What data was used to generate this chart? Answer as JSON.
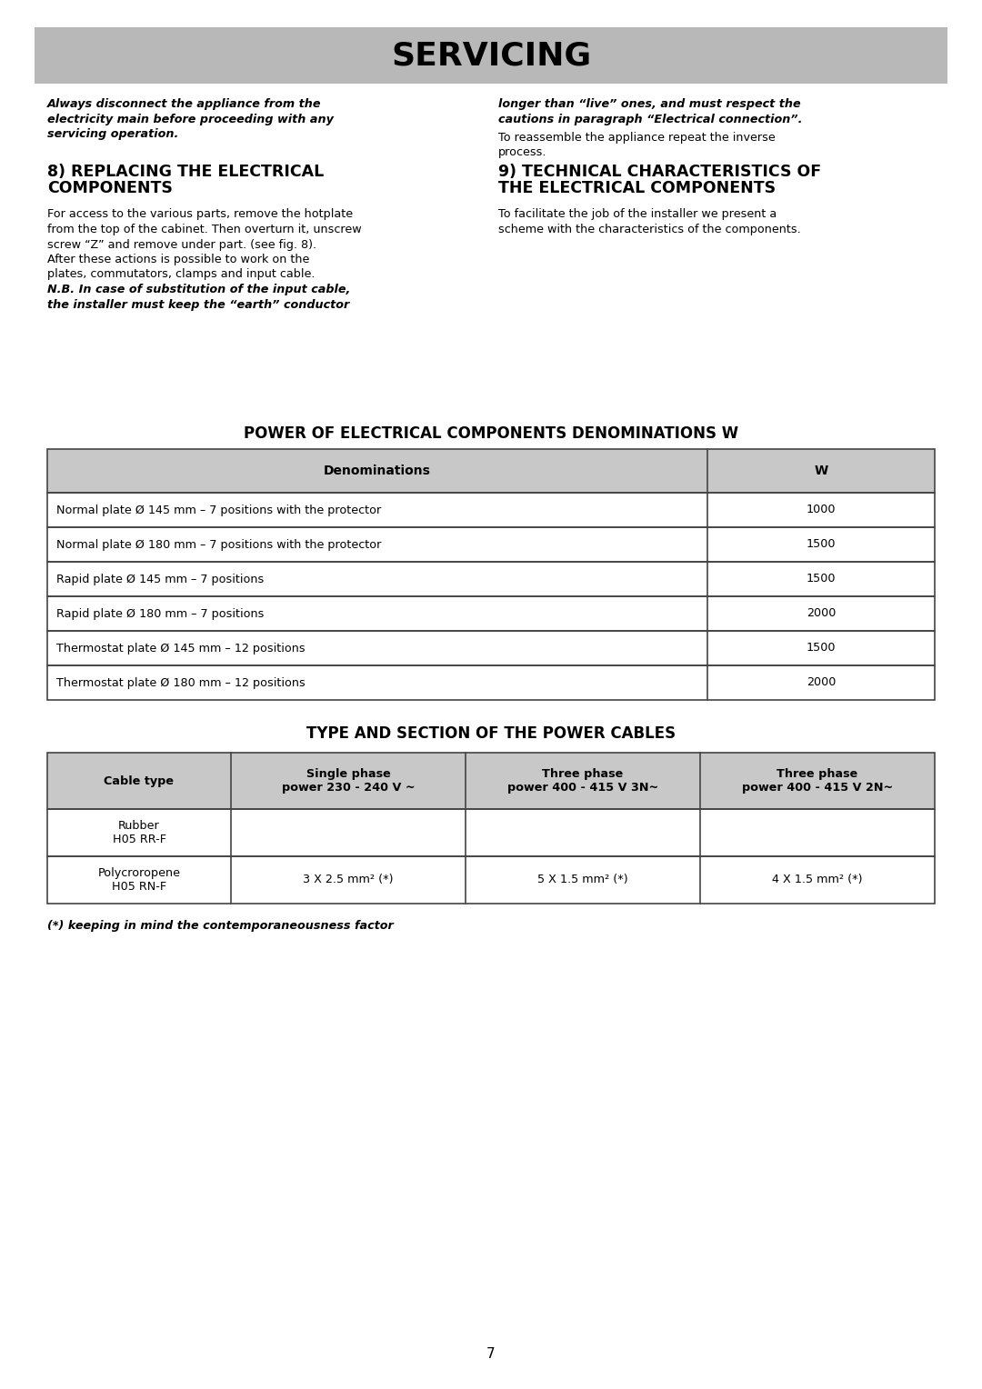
{
  "page_bg": "#ffffff",
  "header_bg": "#b8b8b8",
  "header_text": "SERVICING",
  "header_text_color": "#000000",
  "table_header_bg": "#c8c8c8",
  "table_border_color": "#444444",
  "body_text_color": "#000000",
  "table1_title": "POWER OF ELECTRICAL COMPONENTS DENOMINATIONS W",
  "table1_headers": [
    "Denominations",
    "W"
  ],
  "table1_rows": [
    [
      "Normal plate Ø 145 mm – 7 positions with the protector",
      "1000"
    ],
    [
      "Normal plate Ø 180 mm – 7 positions with the protector",
      "1500"
    ],
    [
      "Rapid plate Ø 145 mm – 7 positions",
      "1500"
    ],
    [
      "Rapid plate Ø 180 mm – 7 positions",
      "2000"
    ],
    [
      "Thermostat plate Ø 145 mm – 12 positions",
      "1500"
    ],
    [
      "Thermostat plate Ø 180 mm – 12 positions",
      "2000"
    ]
  ],
  "table2_title": "TYPE AND SECTION OF THE POWER CABLES",
  "table2_headers": [
    "Cable type",
    "Single phase\npower 230 - 240 V ~",
    "Three phase\npower 400 - 415 V 3N~",
    "Three phase\npower 400 - 415 V 2N~"
  ],
  "table2_rows": [
    [
      "Rubber\nH05 RR-F",
      "",
      "",
      ""
    ],
    [
      "Polycroropene\nH05 RN-F",
      "3 X 2.5 mm² (*)",
      "5 X 1.5 mm² (*)",
      "4 X 1.5 mm² (*)"
    ]
  ],
  "footnote": "(*) keeping in mind the contemporaneousness factor",
  "page_number": "7"
}
